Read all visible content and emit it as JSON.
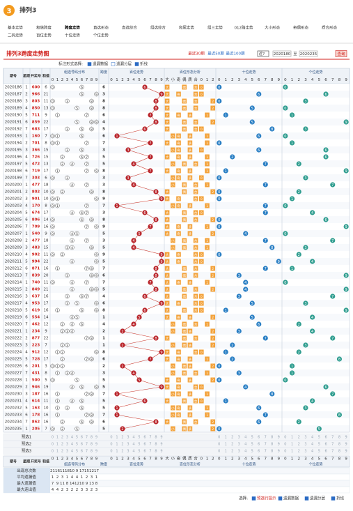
{
  "header": {
    "logo": "3",
    "title": "排列3",
    "nav": [
      "基本走势",
      "和值跨度",
      "跨度走势",
      "直选形态",
      "直选综合",
      "组选综合",
      "和尾走势",
      "组三走势",
      "012路走势",
      "大小形态",
      "奇偶形态",
      "质合形态",
      "二码走势",
      "百位走势",
      "十位走势",
      "个位走势"
    ]
  },
  "toolbar": {
    "title": "排列3跨度走势图",
    "ranges": [
      "最近30期",
      "最近50期",
      "最近100期"
    ],
    "select": "近?",
    "from": "2020180",
    "to_label": "至",
    "to": "2020235",
    "button": "查询"
  },
  "options": {
    "label": "标注形式选择:",
    "items": [
      "遗漏数据",
      "遗漏分层",
      "折线"
    ]
  },
  "table": {
    "cols": [
      "期号",
      "星期",
      "开奖号",
      "和值"
    ],
    "sections": [
      "组选号码分布",
      "跨度",
      "百位走势",
      "百位形态分析",
      "十位走势",
      "个位走势"
    ],
    "digits": [
      0,
      1,
      2,
      3,
      4,
      5,
      6,
      7,
      8,
      9
    ],
    "shape": [
      "大",
      "小",
      "奇",
      "偶",
      "质",
      "合",
      "0",
      "1",
      "2"
    ],
    "rows": [
      [
        "2020186",
        1,
        "600",
        6,
        6,
        [
          6,
          0,
          0
        ]
      ],
      [
        "2020187",
        2,
        "966",
        21,
        3,
        [
          9,
          6,
          6
        ]
      ],
      [
        "2020188",
        3,
        "803",
        11,
        8,
        [
          8,
          0,
          3
        ]
      ],
      [
        "2020189",
        4,
        "850",
        13,
        8,
        [
          8,
          5,
          0
        ]
      ],
      [
        "2020190",
        5,
        "711",
        9,
        6,
        [
          7,
          1,
          1
        ]
      ],
      [
        "2020191",
        6,
        "859",
        22,
        4,
        [
          8,
          5,
          9
        ]
      ],
      [
        "2020192",
        7,
        "683",
        17,
        5,
        [
          6,
          8,
          3
        ]
      ],
      [
        "2020193",
        1,
        "160",
        7,
        6,
        [
          1,
          6,
          0
        ]
      ],
      [
        "2020194",
        2,
        "701",
        8,
        7,
        [
          7,
          0,
          1
        ]
      ],
      [
        "2020195",
        3,
        "366",
        15,
        3,
        [
          3,
          6,
          6
        ]
      ],
      [
        "2020196",
        4,
        "726",
        15,
        5,
        [
          7,
          2,
          6
        ]
      ],
      [
        "2020197",
        5,
        "472",
        13,
        5,
        [
          4,
          7,
          2
        ]
      ],
      [
        "2020198",
        6,
        "719",
        17,
        8,
        [
          7,
          1,
          9
        ]
      ],
      [
        "2020199",
        7,
        "303",
        6,
        3,
        [
          3,
          0,
          3
        ]
      ],
      [
        "2020200",
        1,
        "477",
        18,
        3,
        [
          4,
          7,
          7
        ]
      ],
      [
        "2020201",
        2,
        "802",
        10,
        8,
        [
          8,
          0,
          2
        ]
      ],
      [
        "2020202",
        3,
        "901",
        10,
        9,
        [
          9,
          0,
          1
        ]
      ],
      [
        "2020203",
        4,
        "170",
        8,
        7,
        [
          1,
          7,
          0
        ]
      ],
      [
        "2020204",
        5,
        "674",
        17,
        3,
        [
          6,
          7,
          4
        ]
      ],
      [
        "2020205",
        6,
        "806",
        14,
        8,
        [
          8,
          0,
          6
        ]
      ],
      [
        "2020206",
        7,
        "709",
        16,
        9,
        [
          7,
          0,
          9
        ]
      ],
      [
        "2020207",
        1,
        "540",
        9,
        5,
        [
          5,
          4,
          0
        ]
      ],
      [
        "2020208",
        2,
        "477",
        18,
        3,
        [
          4,
          7,
          7
        ]
      ],
      [
        "2020209",
        3,
        "483",
        15,
        5,
        [
          4,
          8,
          3
        ]
      ],
      [
        "2020210",
        4,
        "902",
        11,
        9,
        [
          9,
          0,
          2
        ]
      ],
      [
        "2020211",
        5,
        "994",
        22,
        5,
        [
          9,
          9,
          4
        ]
      ],
      [
        "2020212",
        6,
        "871",
        16,
        7,
        [
          8,
          7,
          1
        ]
      ],
      [
        "2020213",
        7,
        "839",
        20,
        6,
        [
          8,
          3,
          9
        ]
      ],
      [
        "2020214",
        1,
        "740",
        11,
        7,
        [
          7,
          4,
          0
        ]
      ],
      [
        "2020215",
        2,
        "849",
        21,
        5,
        [
          8,
          4,
          9
        ]
      ],
      [
        "2020216",
        3,
        "637",
        16,
        4,
        [
          6,
          3,
          7
        ]
      ],
      [
        "2020217",
        4,
        "953",
        17,
        6,
        [
          9,
          5,
          3
        ]
      ],
      [
        "2020218",
        5,
        "619",
        16,
        8,
        [
          6,
          1,
          9
        ]
      ],
      [
        "2020219",
        6,
        "554",
        14,
        1,
        [
          5,
          5,
          4
        ]
      ],
      [
        "2020220",
        7,
        "462",
        12,
        4,
        [
          4,
          6,
          2
        ]
      ],
      [
        "2020221",
        1,
        "234",
        9,
        2,
        [
          2,
          3,
          4
        ]
      ],
      [
        "2020222",
        2,
        "877",
        22,
        1,
        [
          8,
          7,
          7
        ]
      ],
      [
        "2020223",
        3,
        "223",
        7,
        1,
        [
          2,
          2,
          3
        ]
      ],
      [
        "2020224",
        4,
        "912",
        12,
        8,
        [
          9,
          1,
          2
        ]
      ],
      [
        "2020225",
        5,
        "728",
        17,
        6,
        [
          7,
          2,
          8
        ]
      ],
      [
        "2020226",
        6,
        "201",
        3,
        2,
        [
          2,
          0,
          1
        ]
      ],
      [
        "2020227",
        7,
        "431",
        8,
        3,
        [
          4,
          3,
          1
        ]
      ],
      [
        "2020228",
        1,
        "500",
        5,
        5,
        [
          5,
          0,
          0
        ]
      ],
      [
        "2020229",
        2,
        "946",
        19,
        5,
        [
          9,
          4,
          6
        ]
      ],
      [
        "2020230",
        3,
        "187",
        16,
        7,
        [
          1,
          8,
          7
        ]
      ],
      [
        "2020231",
        4,
        "614",
        11,
        5,
        [
          6,
          1,
          4
        ]
      ],
      [
        "2020232",
        5,
        "163",
        10,
        5,
        [
          1,
          6,
          3
        ]
      ],
      [
        "2020233",
        6,
        "178",
        16,
        7,
        [
          1,
          7,
          8
        ]
      ],
      [
        "2020234",
        7,
        "862",
        16,
        6,
        [
          8,
          6,
          2
        ]
      ],
      [
        "2020235",
        1,
        "205",
        7,
        5,
        [
          2,
          0,
          5
        ]
      ]
    ],
    "pre": [
      "预选1",
      "预选2",
      "预选3"
    ],
    "stats": [
      {
        "name": "出现总次数",
        "values": [
          21,
          16,
          11,
          18,
          10,
          9,
          17,
          15,
          12,
          17
        ]
      },
      {
        "name": "平均遗漏值",
        "values": [
          1,
          2,
          3,
          1,
          4,
          4,
          1,
          2,
          3,
          1
        ]
      },
      {
        "name": "最大遗漏值",
        "values": [
          7,
          9,
          11,
          8,
          14,
          12,
          10,
          9,
          13,
          8
        ]
      },
      {
        "name": "最大连出值",
        "values": [
          4,
          4,
          2,
          3,
          2,
          2,
          3,
          3,
          2,
          3
        ]
      }
    ]
  },
  "footer": {
    "label": "选择:",
    "items": [
      "预选行提示",
      "遗漏数据",
      "遗漏分层",
      "折线"
    ]
  }
}
